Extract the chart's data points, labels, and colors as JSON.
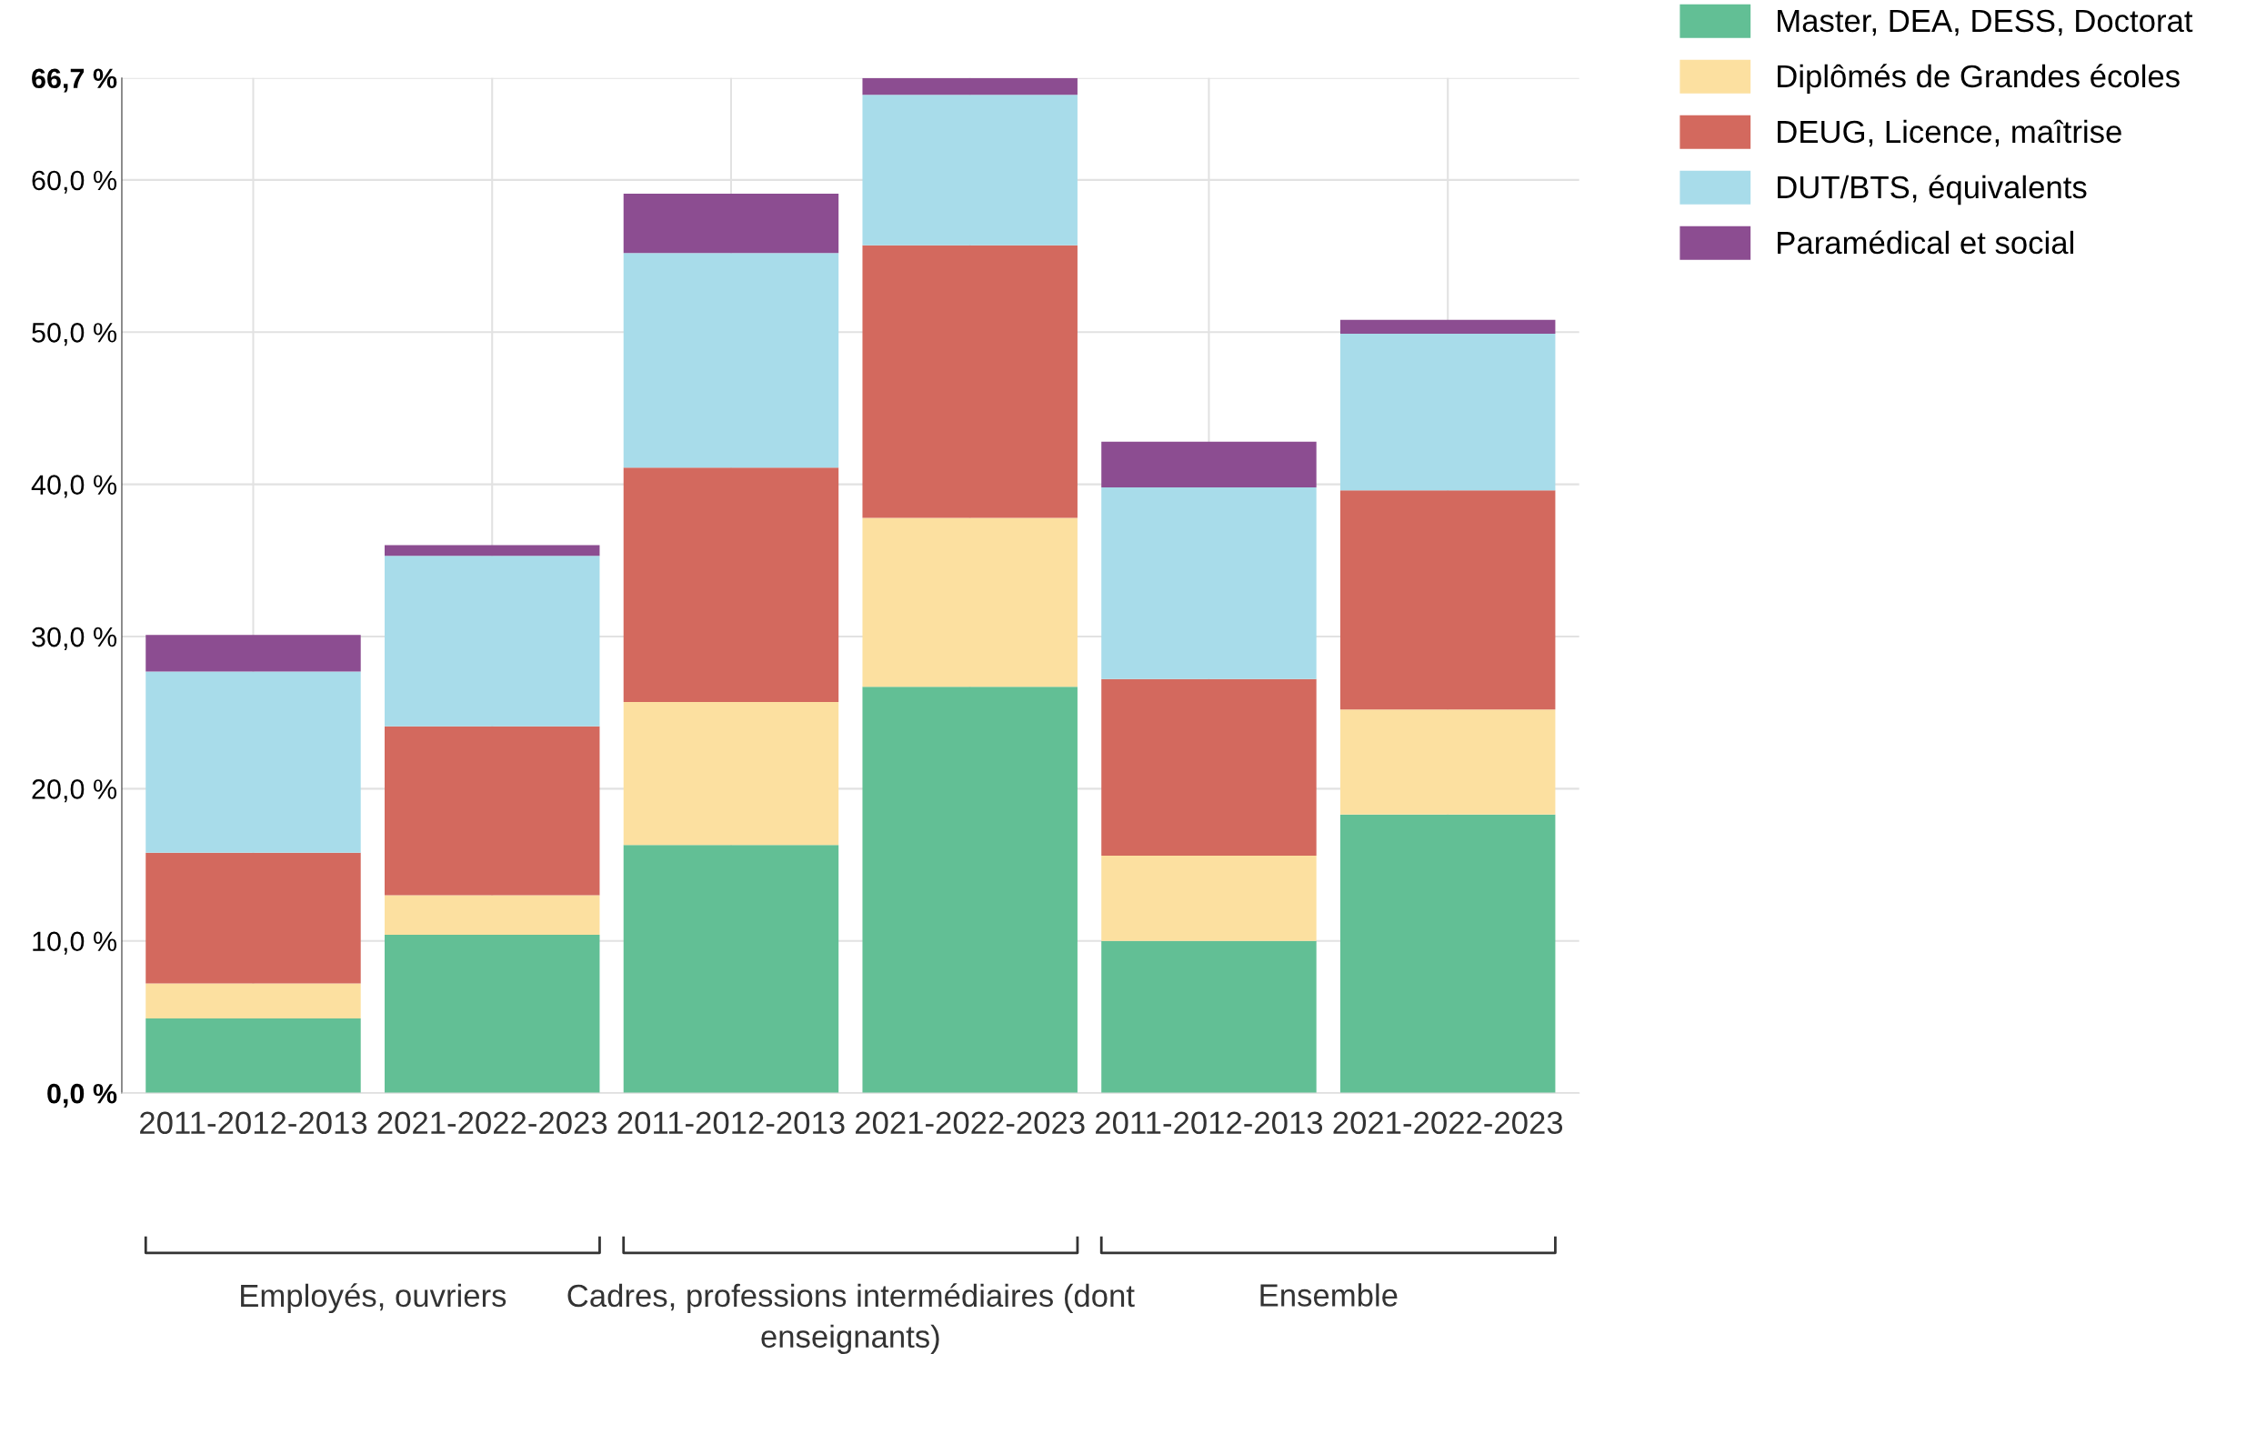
{
  "chart_data": {
    "type": "bar",
    "stacked": true,
    "categories": [
      "2011-2012-2013",
      "2021-2022-2023",
      "2011-2012-2013",
      "2021-2022-2023",
      "2011-2012-2013",
      "2021-2022-2023"
    ],
    "series": [
      {
        "name": "Master, DEA, DESS, Doctorat",
        "color": "#62bf95",
        "values": [
          4.9,
          10.4,
          16.3,
          26.7,
          10.0,
          18.3
        ]
      },
      {
        "name": "Diplômés de Grandes écoles",
        "color": "#fce0a0",
        "values": [
          2.3,
          2.6,
          9.4,
          11.1,
          5.6,
          6.9
        ]
      },
      {
        "name": "DEUG, Licence, maîtrise",
        "color": "#d3695e",
        "values": [
          8.6,
          11.1,
          15.4,
          17.9,
          11.6,
          14.4
        ]
      },
      {
        "name": "DUT/BTS, équivalents",
        "color": "#a8dcea",
        "values": [
          11.9,
          11.2,
          14.1,
          9.9,
          12.6,
          10.3
        ]
      },
      {
        "name": "Paramédical et social",
        "color": "#8c4d91",
        "values": [
          2.4,
          0.7,
          3.9,
          1.1,
          3.0,
          0.9
        ]
      }
    ],
    "ylim": [
      0,
      66.7
    ],
    "yticks": [
      {
        "value": 0,
        "label": "0,0 %"
      },
      {
        "value": 10,
        "label": "10,0 %"
      },
      {
        "value": 20,
        "label": "20,0 %"
      },
      {
        "value": 30,
        "label": "30,0 %"
      },
      {
        "value": 40,
        "label": "40,0 %"
      },
      {
        "value": 50,
        "label": "50,0 %"
      },
      {
        "value": 60,
        "label": "60,0 %"
      },
      {
        "value": 66.7,
        "label": "66,7 %"
      }
    ],
    "grid": true,
    "legend": "top right",
    "annotations": [
      "Employés, ouvriers",
      "Cadres, professions intermédiaires (dont enseignants)",
      "Ensemble"
    ]
  }
}
